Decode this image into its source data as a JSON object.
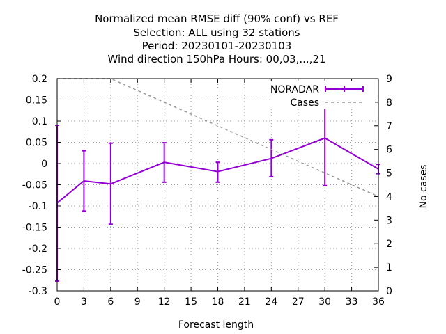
{
  "chart_data": {
    "type": "line",
    "title_lines": [
      "Normalized mean RMSE diff (90% conf) vs REF",
      "Selection: ALL using    32 stations",
      "Period: 20230101-20230103",
      "Wind direction 150hPa   Hours:  00,03,...,21"
    ],
    "xlabel": "Forecast length",
    "ylabel_left": "",
    "ylabel_right": "No cases",
    "xlim": [
      0,
      36
    ],
    "ylim_left": [
      -0.3,
      0.2
    ],
    "ylim_right": [
      0,
      9
    ],
    "x_ticks": [
      "0",
      "3",
      "6",
      "9",
      "12",
      "15",
      "18",
      "21",
      "24",
      "27",
      "30",
      "33",
      "36"
    ],
    "y_ticks_left": [
      "0.2",
      "0.15",
      "0.1",
      "0.05",
      "0",
      "-0.05",
      "-0.1",
      "-0.15",
      "-0.2",
      "-0.25",
      "-0.3"
    ],
    "y_ticks_right": [
      "9",
      "8",
      "7",
      "6",
      "5",
      "4",
      "3",
      "2",
      "1",
      "0"
    ],
    "grid": true,
    "legend_position": "top-right",
    "series": [
      {
        "name": "NORADAR",
        "axis": "left",
        "color": "#9400d3",
        "x": [
          0,
          3,
          6,
          12,
          18,
          24,
          30,
          36
        ],
        "y": [
          -0.093,
          -0.041,
          -0.048,
          0.003,
          -0.019,
          0.012,
          0.06,
          -0.013
        ],
        "err_low": [
          -0.277,
          -0.112,
          -0.143,
          -0.044,
          -0.044,
          -0.031,
          -0.052,
          -0.024
        ],
        "err_high": [
          0.09,
          0.03,
          0.048,
          0.049,
          0.003,
          0.056,
          0.172,
          -0.002
        ]
      },
      {
        "name": "Cases",
        "axis": "right",
        "color": "#999999",
        "style": "dashed",
        "x": [
          0,
          6,
          12,
          18,
          24,
          30,
          36
        ],
        "y": [
          9,
          9,
          8,
          7,
          6,
          5,
          4
        ]
      }
    ]
  }
}
